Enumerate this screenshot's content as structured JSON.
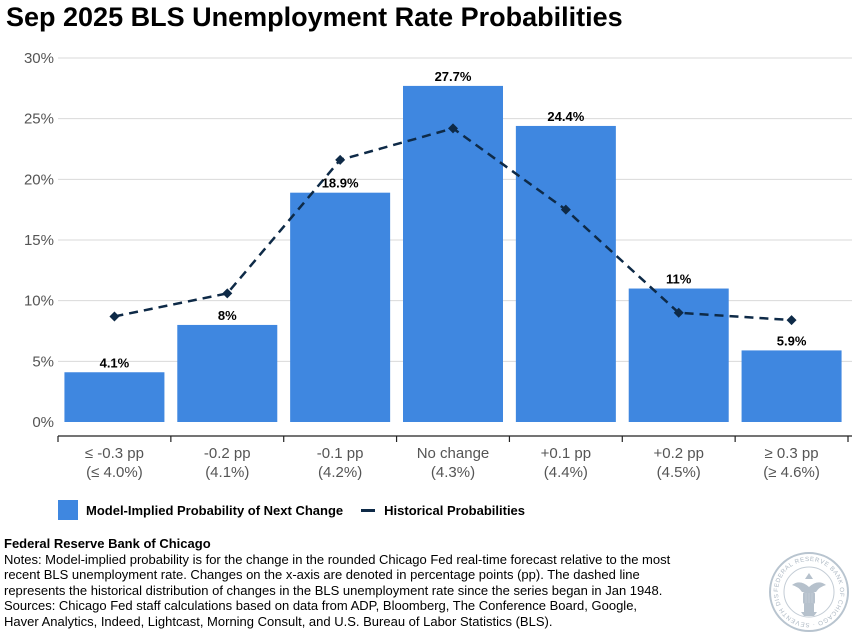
{
  "title": "Sep 2025 BLS Unemployment Rate Probabilities",
  "colors": {
    "bar": "#3f87e0",
    "line": "#0e2a47",
    "grid": "#d9d9d9",
    "axis": "#222222",
    "tick_text": "#555555"
  },
  "chart_data": {
    "type": "bar",
    "title": "Sep 2025 BLS Unemployment Rate Probabilities",
    "xlabel": "",
    "ylabel": "",
    "ylim": [
      0,
      30
    ],
    "yticks": [
      0,
      5,
      10,
      15,
      20,
      25,
      30
    ],
    "ytick_labels": [
      "0%",
      "5%",
      "10%",
      "15%",
      "20%",
      "25%",
      "30%"
    ],
    "grid": true,
    "legend_position": "bottom-left",
    "categories": [
      [
        "≤ -0.3 pp",
        "(≤ 4.0%)"
      ],
      [
        "-0.2 pp",
        "(4.1%)"
      ],
      [
        "-0.1 pp",
        "(4.2%)"
      ],
      [
        "No change",
        "(4.3%)"
      ],
      [
        "+0.1 pp",
        "(4.4%)"
      ],
      [
        "+0.2 pp",
        "(4.5%)"
      ],
      [
        "≥ 0.3 pp",
        "(≥ 4.6%)"
      ]
    ],
    "series": [
      {
        "name": "Model-Implied Probability of Next Change",
        "type": "bar",
        "values": [
          4.1,
          8,
          18.9,
          27.7,
          24.4,
          11,
          5.9
        ],
        "labels": [
          "4.1%",
          "8%",
          "18.9%",
          "27.7%",
          "24.4%",
          "11%",
          "5.9%"
        ]
      },
      {
        "name": "Historical Probabilities",
        "type": "line",
        "style": "dashed",
        "values": [
          8.7,
          10.6,
          21.6,
          24.2,
          17.5,
          9.0,
          8.4
        ]
      }
    ]
  },
  "notes": {
    "source_name": "Federal Reserve Bank of Chicago",
    "lines": [
      "Notes: Model-implied probability is for the change in the rounded Chicago Fed real-time forecast relative to the most",
      "recent BLS unemployment rate. Changes on the x-axis are denoted in percentage points (pp). The dashed line",
      "represents the historical distribution of changes in the BLS unemployment rate since the series began in Jan 1948.",
      "Sources: Chicago Fed staff calculations based on data from ADP, Bloomberg, The Conference Board, Google,",
      "Haver Analytics, Indeed, Lightcast, Morning Consult, and U.S. Bureau of Labor Statistics (BLS)."
    ]
  },
  "seal": {
    "text": "FEDERAL RESERVE BANK OF CHICAGO · SEVENTH DISTRICT"
  }
}
